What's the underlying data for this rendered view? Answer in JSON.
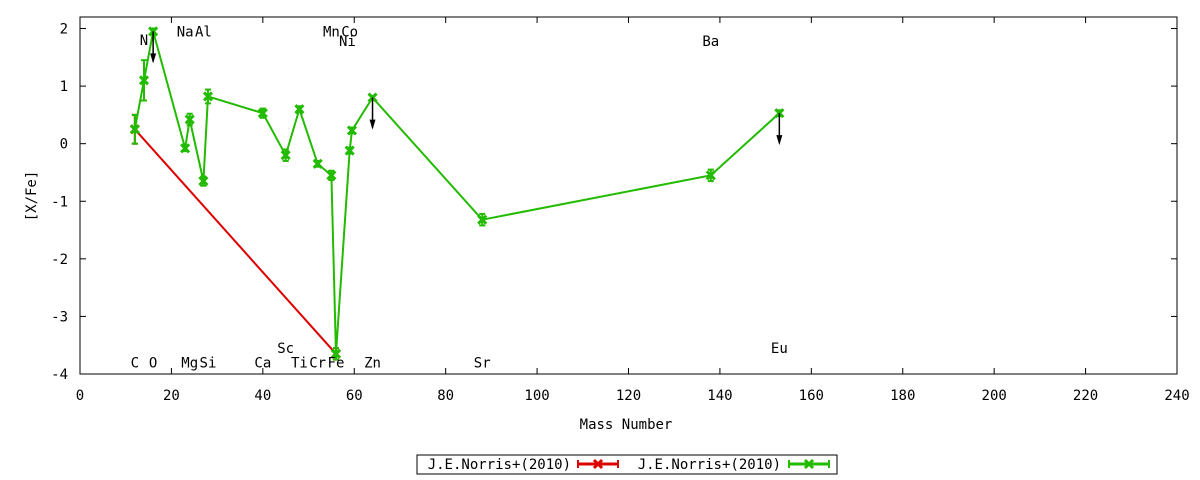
{
  "chart_data": {
    "type": "line",
    "xlabel": "Mass Number",
    "ylabel": "[X/Fe]",
    "xlim": [
      0,
      240
    ],
    "ylim": [
      -4,
      2.2
    ],
    "x_ticks": [
      0,
      20,
      40,
      60,
      80,
      100,
      120,
      140,
      160,
      180,
      200,
      220,
      240
    ],
    "y_ticks": [
      -4,
      -3,
      -2,
      -1,
      0,
      1,
      2
    ],
    "grid": false,
    "legend_position": "bottom-center",
    "series": [
      {
        "name": "J.E.Norris+(2010)",
        "color": "#dd0000",
        "points": [
          {
            "x": 12,
            "y": 0.25,
            "err": 0.25
          },
          {
            "x": 56,
            "y": -3.65,
            "err": 0.1
          }
        ]
      },
      {
        "name": "J.E.Norris+(2010)",
        "color": "#22bb00",
        "points": [
          {
            "x": 12,
            "y": 0.25,
            "err": 0.25
          },
          {
            "x": 14,
            "y": 1.1,
            "err": 0.35
          },
          {
            "x": 16,
            "y": 1.95,
            "err": 0.05,
            "upper_limit": true
          },
          {
            "x": 23,
            "y": -0.08,
            "err": 0.05
          },
          {
            "x": 24,
            "y": 0.42,
            "err": 0.1
          },
          {
            "x": 27,
            "y": -0.65,
            "err": 0.08
          },
          {
            "x": 28,
            "y": 0.82,
            "err": 0.12
          },
          {
            "x": 40,
            "y": 0.53,
            "err": 0.08
          },
          {
            "x": 45,
            "y": -0.2,
            "err": 0.1
          },
          {
            "x": 48,
            "y": 0.6,
            "err": 0.05
          },
          {
            "x": 52,
            "y": -0.35,
            "err": 0.05
          },
          {
            "x": 55,
            "y": -0.55,
            "err": 0.08
          },
          {
            "x": 56,
            "y": -3.65,
            "err": 0.1
          },
          {
            "x": 59,
            "y": -0.12,
            "err": 0.05
          },
          {
            "x": 59.5,
            "y": 0.23,
            "err": 0.05
          },
          {
            "x": 64,
            "y": 0.8,
            "err": 0.03,
            "upper_limit": true
          },
          {
            "x": 88,
            "y": -1.32,
            "err": 0.1
          },
          {
            "x": 138,
            "y": -0.55,
            "err": 0.1
          },
          {
            "x": 153,
            "y": 0.53,
            "err": 0.05,
            "upper_limit": true
          }
        ]
      }
    ],
    "annotations": [
      {
        "text": "C",
        "x": 12,
        "y": -3.8
      },
      {
        "text": "N",
        "x": 14,
        "y": 1.8
      },
      {
        "text": "O",
        "x": 16,
        "y": -3.8
      },
      {
        "text": "Na",
        "x": 23,
        "y": 1.95
      },
      {
        "text": "Al",
        "x": 27,
        "y": 1.95
      },
      {
        "text": "Mg",
        "x": 24,
        "y": -3.8
      },
      {
        "text": "Si",
        "x": 28,
        "y": -3.8
      },
      {
        "text": "Ca",
        "x": 40,
        "y": -3.8
      },
      {
        "text": "Sc",
        "x": 45,
        "y": -3.55
      },
      {
        "text": "Ti",
        "x": 48,
        "y": -3.8
      },
      {
        "text": "Cr",
        "x": 52,
        "y": -3.8
      },
      {
        "text": "Fe",
        "x": 56,
        "y": -3.8
      },
      {
        "text": "Mn",
        "x": 55,
        "y": 1.95
      },
      {
        "text": "Co",
        "x": 59,
        "y": 1.95
      },
      {
        "text": "Ni",
        "x": 58.5,
        "y": 1.78
      },
      {
        "text": "Zn",
        "x": 64,
        "y": -3.8
      },
      {
        "text": "Sr",
        "x": 88,
        "y": -3.8
      },
      {
        "text": "Ba",
        "x": 138,
        "y": 1.78
      },
      {
        "text": "Eu",
        "x": 153,
        "y": -3.55
      }
    ]
  }
}
